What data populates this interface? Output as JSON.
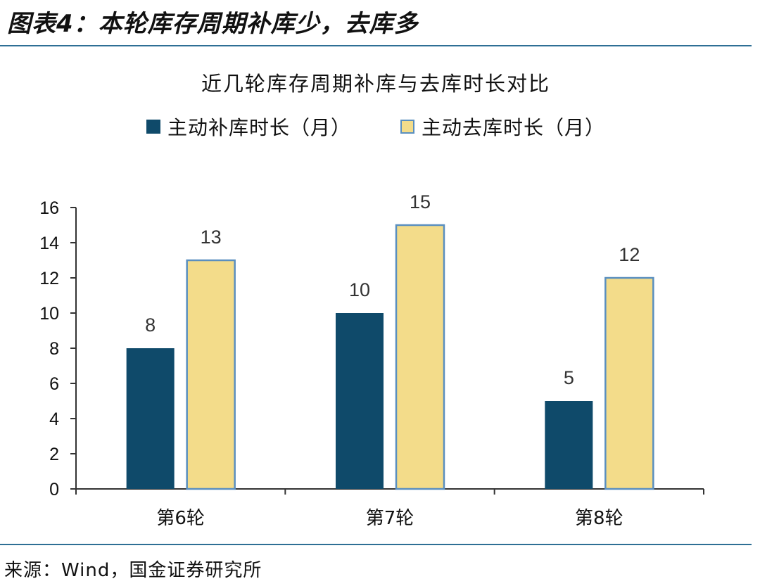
{
  "header": {
    "title": "图表4：本轮库存周期补库少，去库多"
  },
  "footer": {
    "source": "来源：Wind，国金证券研究所"
  },
  "colors": {
    "series1": "#0f4a6a",
    "series2": "#f3dc8a",
    "series2_border": "#5a8fbf",
    "axis": "#333333",
    "rule": "#2e6f95"
  },
  "chart_data": {
    "type": "bar",
    "title": "近几轮库存周期补库与去库时长对比",
    "categories": [
      "第6轮",
      "第7轮",
      "第8轮"
    ],
    "series": [
      {
        "name": "主动补库时长（月）",
        "values": [
          8,
          10,
          5
        ]
      },
      {
        "name": "主动去库时长（月）",
        "values": [
          13,
          15,
          12
        ]
      }
    ],
    "ylim": [
      0,
      16
    ],
    "yticks": [
      0,
      2,
      4,
      6,
      8,
      10,
      12,
      14,
      16
    ],
    "legend_position": "top",
    "grid": false,
    "data_labels": true
  }
}
